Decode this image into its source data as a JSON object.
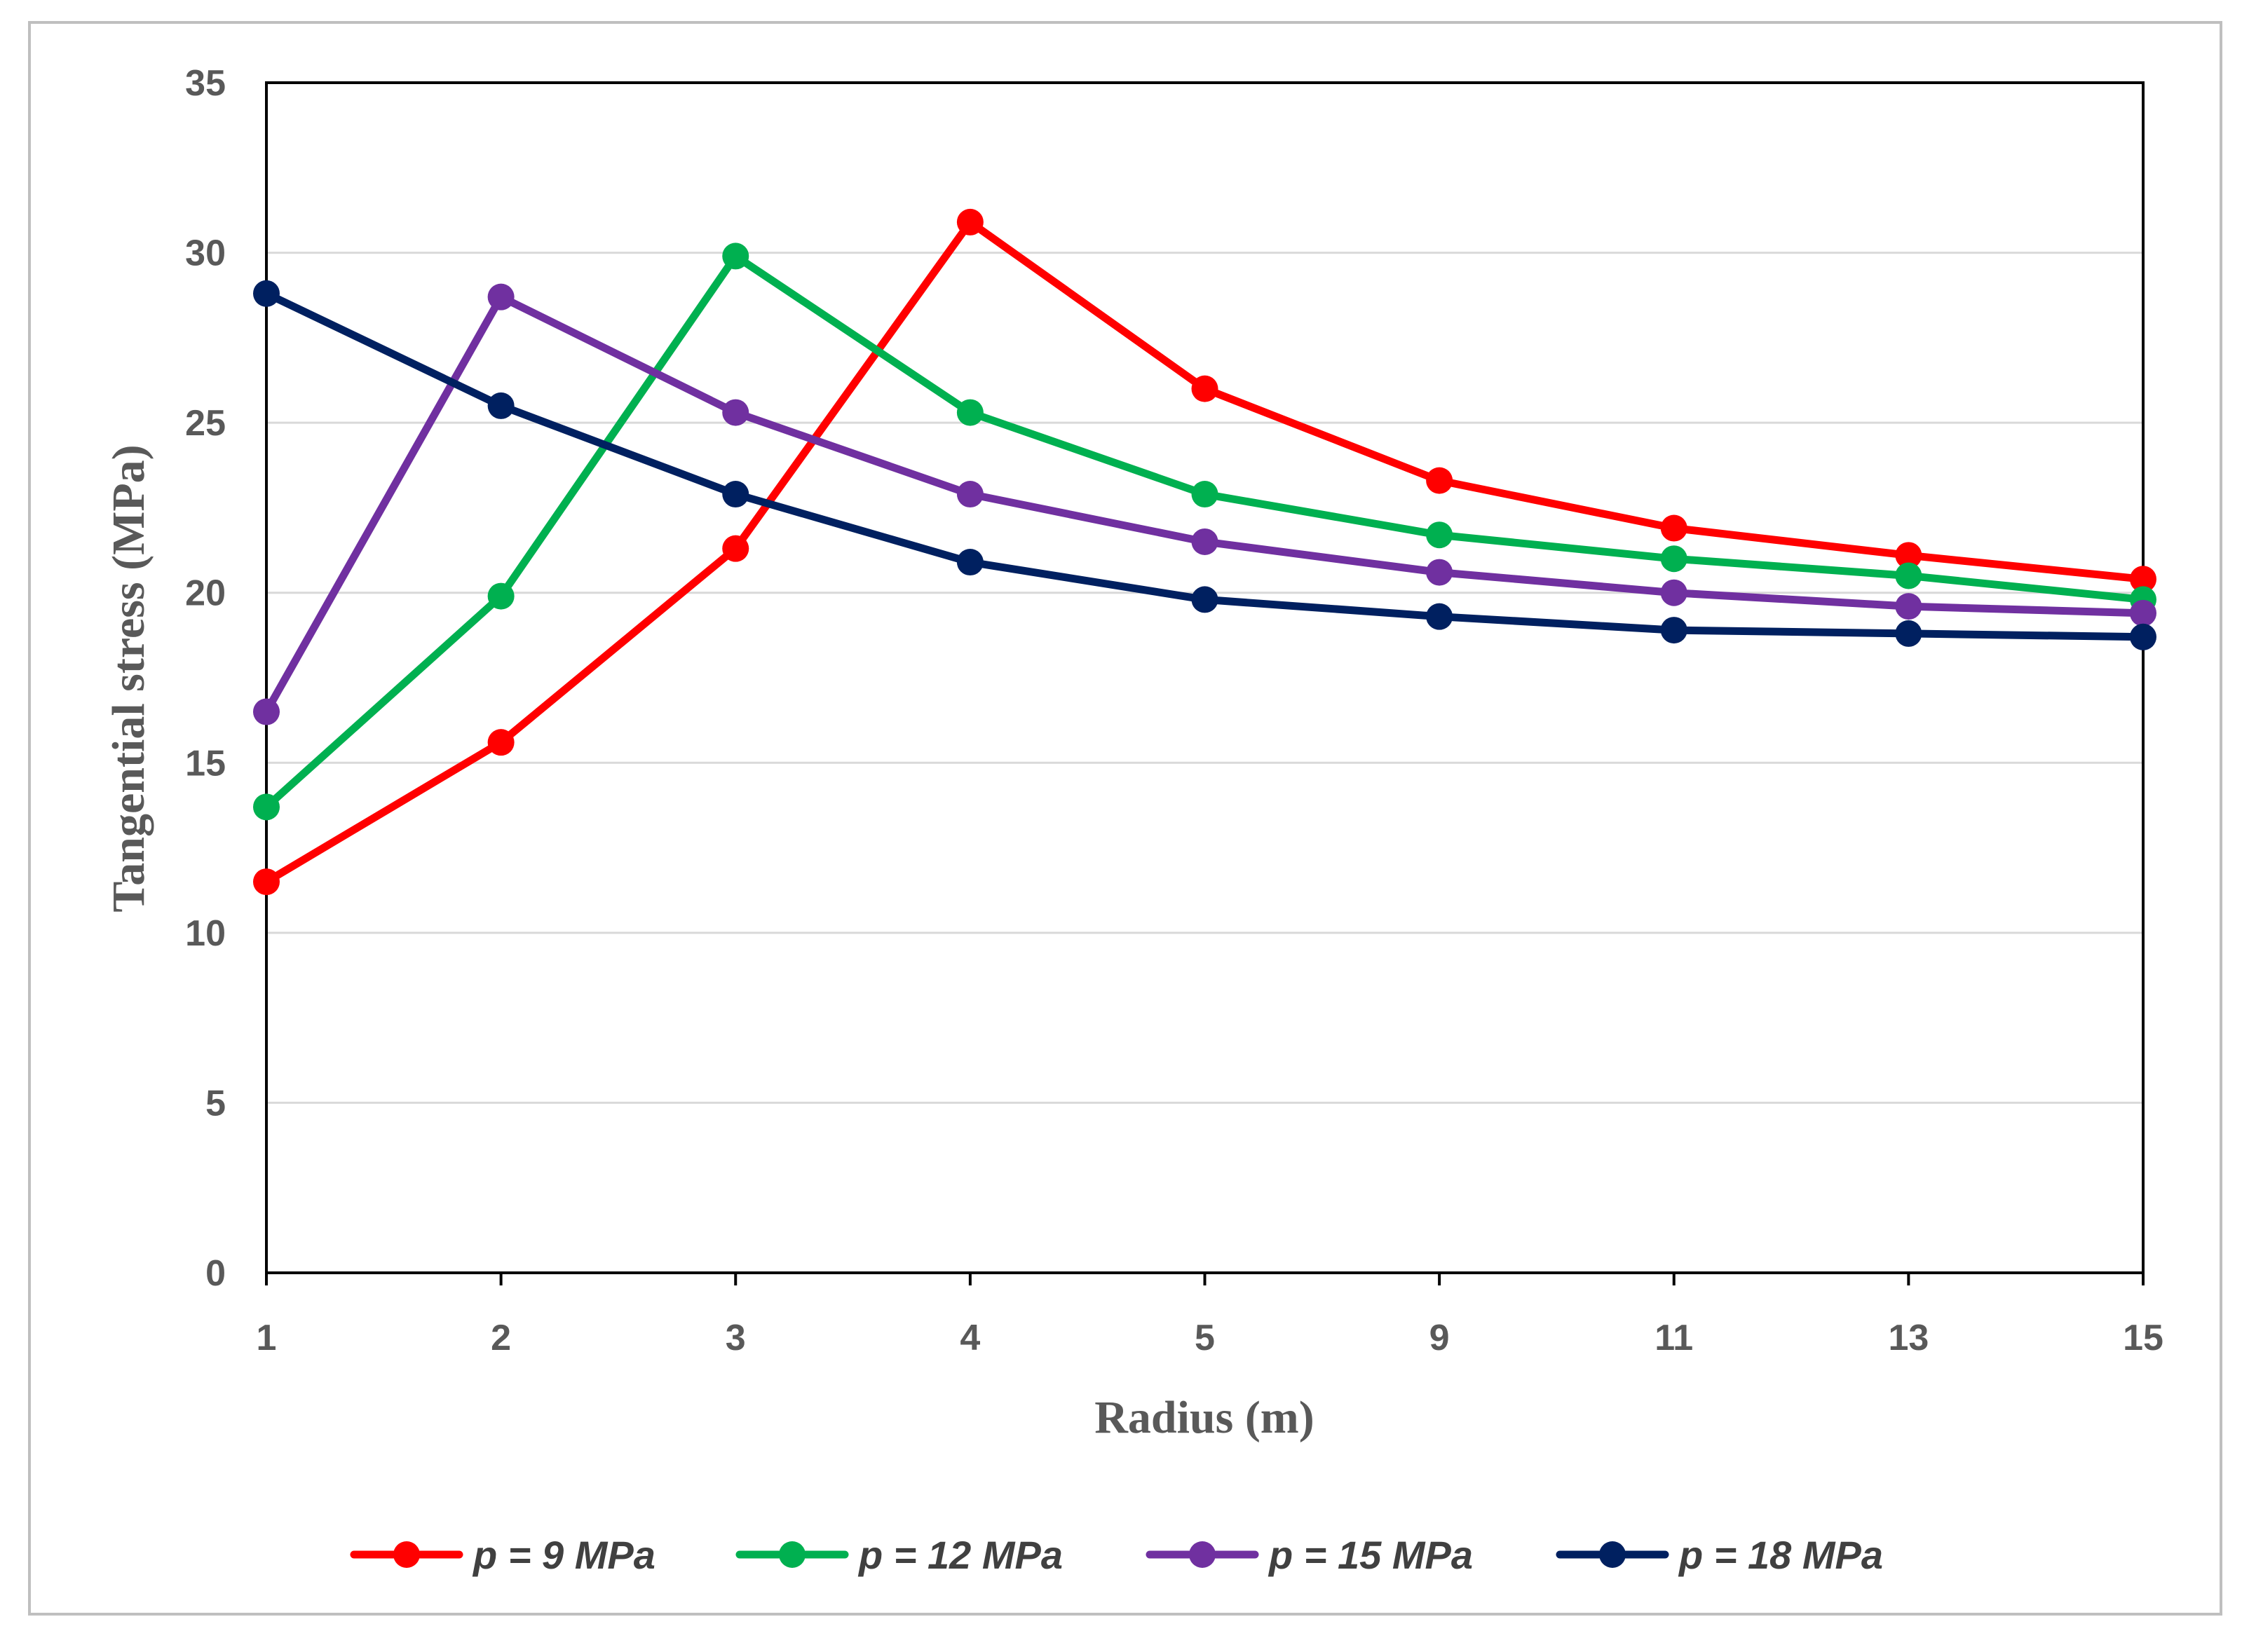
{
  "chart_data": {
    "type": "line",
    "title": "",
    "xlabel": "Radius (m)",
    "ylabel": "Tangential stress (MPa)",
    "categories": [
      "1",
      "2",
      "3",
      "4",
      "5",
      "9",
      "11",
      "13",
      "15"
    ],
    "y_ticks": [
      "0",
      "5",
      "10",
      "15",
      "20",
      "25",
      "30",
      "35"
    ],
    "ylim": [
      0,
      35
    ],
    "grid": true,
    "legend_position": "bottom",
    "series": [
      {
        "name": "p = 9 MPa",
        "color": "#ff0000",
        "values": [
          11.5,
          15.6,
          21.3,
          30.9,
          26.0,
          23.3,
          21.9,
          21.1,
          20.4
        ]
      },
      {
        "name": "p = 12 MPa",
        "color": "#00b050",
        "values": [
          13.7,
          19.9,
          29.9,
          25.3,
          22.9,
          21.7,
          21.0,
          20.5,
          19.8
        ]
      },
      {
        "name": "p = 15 MPa",
        "color": "#7030a0",
        "values": [
          16.5,
          28.7,
          25.3,
          22.9,
          21.5,
          20.6,
          20.0,
          19.6,
          19.4
        ]
      },
      {
        "name": "p = 18 MPa",
        "color": "#002060",
        "values": [
          28.8,
          25.5,
          22.9,
          20.9,
          19.8,
          19.3,
          18.9,
          18.8,
          18.7
        ]
      }
    ]
  }
}
